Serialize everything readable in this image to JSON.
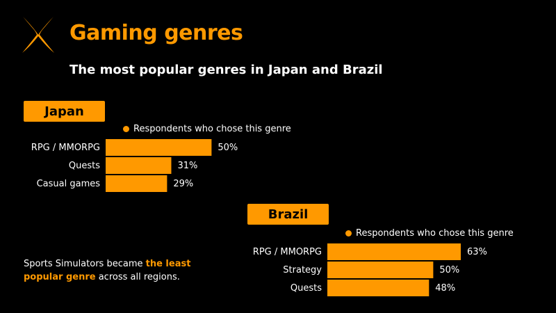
{
  "header": {
    "title": "Gaming genres",
    "subtitle": "The most popular genres in Japan and Brazil"
  },
  "colors": {
    "accent": "#ff9900",
    "background": "#000000",
    "text": "#ffffff"
  },
  "regions": [
    {
      "name": "Japan",
      "legend": "Respondents who chose this genre"
    },
    {
      "name": "Brazil",
      "legend": "Respondents who chose this genre"
    }
  ],
  "note": {
    "before": "Sports Simulators became ",
    "highlight": "the least popular genre",
    "after": " across all regions."
  },
  "chart_data": [
    {
      "type": "bar",
      "orientation": "horizontal",
      "title": "Japan",
      "categories": [
        "RPG / MMORPG",
        "Quests",
        "Casual games"
      ],
      "series": [
        {
          "name": "Respondents who chose this genre",
          "values": [
            50,
            31,
            29
          ]
        }
      ],
      "unit": "%",
      "xlim": [
        0,
        63
      ]
    },
    {
      "type": "bar",
      "orientation": "horizontal",
      "title": "Brazil",
      "categories": [
        "RPG / MMORPG",
        "Strategy",
        "Quests"
      ],
      "series": [
        {
          "name": "Respondents who chose this genre",
          "values": [
            63,
            50,
            48
          ]
        }
      ],
      "unit": "%",
      "xlim": [
        0,
        63
      ]
    }
  ]
}
